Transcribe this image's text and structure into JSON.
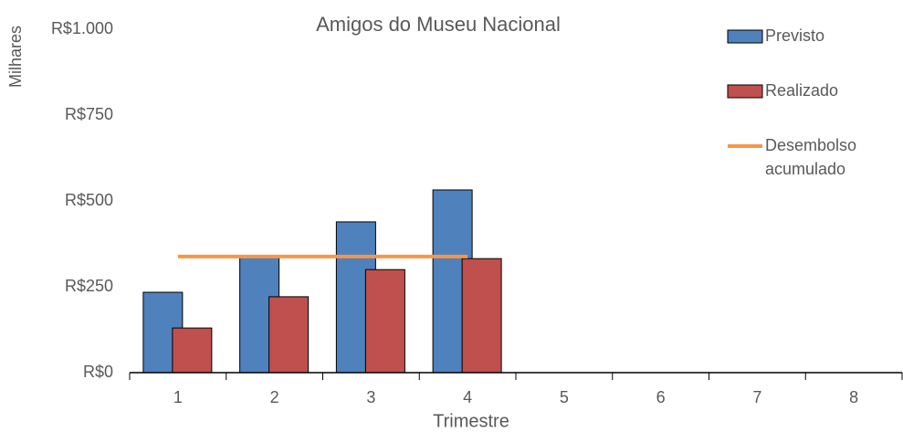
{
  "chart_data": {
    "type": "bar-line",
    "title": "Amigos do Museu Nacional",
    "y_label": "Milhares",
    "x_label": "Trimestre",
    "categories": [
      "1",
      "2",
      "3",
      "4",
      "5",
      "6",
      "7",
      "8"
    ],
    "series": [
      {
        "name": "Previsto",
        "type": "bar",
        "color": "#4f81bd",
        "values": [
          234,
          340,
          439,
          532,
          null,
          null,
          null,
          null
        ]
      },
      {
        "name": "Realizado",
        "type": "bar",
        "color": "#c0504d",
        "values": [
          130,
          221,
          300,
          332,
          null,
          null,
          null,
          null
        ]
      },
      {
        "name": "Desembolso acumulado",
        "type": "line",
        "color": "#f79646",
        "values": [
          338,
          338,
          338,
          338,
          null,
          null,
          null,
          null
        ]
      }
    ],
    "ylim": [
      0,
      1000
    ],
    "yticks": [
      {
        "value": 0,
        "label": "R$0"
      },
      {
        "value": 250,
        "label": "R$250"
      },
      {
        "value": 500,
        "label": "R$500"
      },
      {
        "value": 750,
        "label": "R$750"
      },
      {
        "value": 1000,
        "label": "R$1.000"
      }
    ],
    "legend": "right"
  }
}
